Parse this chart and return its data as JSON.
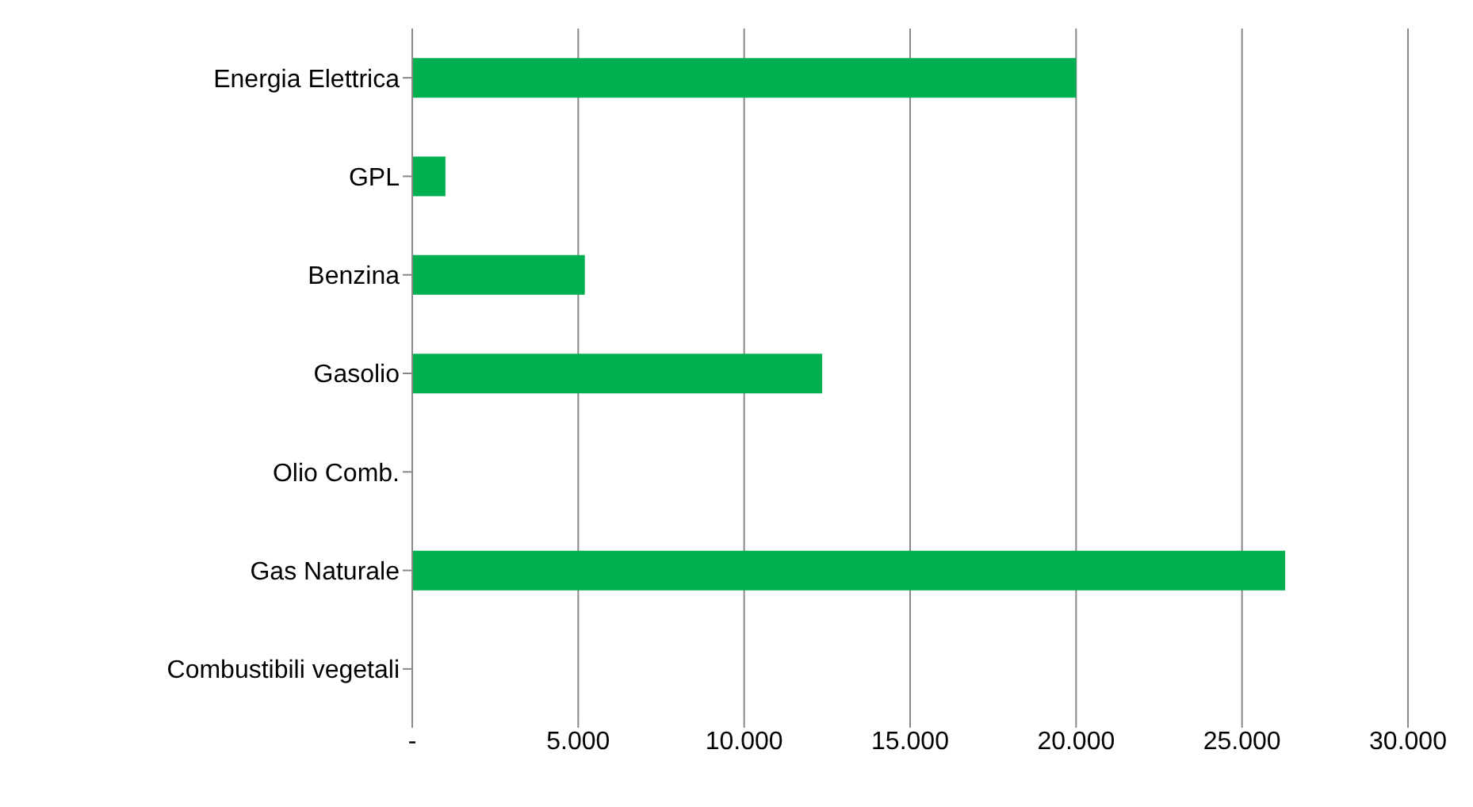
{
  "chart_data": {
    "type": "bar",
    "orientation": "horizontal",
    "categories": [
      "Energia Elettrica",
      "GPL",
      "Benzina",
      "Gasolio",
      "Olio Comb.",
      "Gas Naturale",
      "Combustibili vegetali"
    ],
    "values": [
      20000,
      1000,
      5200,
      12350,
      0,
      26300,
      0
    ],
    "color": "#00b050",
    "xlim": [
      0,
      30000
    ],
    "xticks": [
      {
        "value": 0,
        "label": "-"
      },
      {
        "value": 5000,
        "label": "5.000"
      },
      {
        "value": 10000,
        "label": "10.000"
      },
      {
        "value": 15000,
        "label": "15.000"
      },
      {
        "value": 20000,
        "label": "20.000"
      },
      {
        "value": 25000,
        "label": "25.000"
      },
      {
        "value": 30000,
        "label": "30.000"
      }
    ],
    "grid": "x"
  }
}
